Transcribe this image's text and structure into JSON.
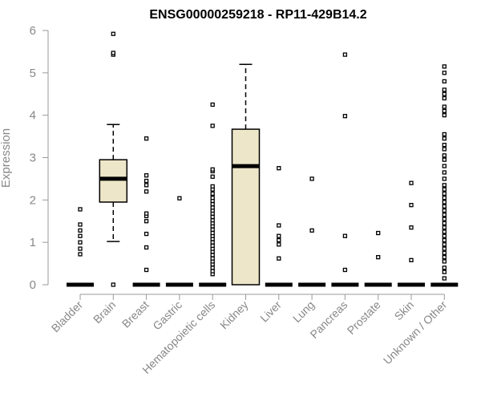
{
  "chart_data": {
    "type": "box",
    "title": "ENSG00000259218 - RP11-429B14.2",
    "ylabel": "Expression",
    "ylim": [
      0,
      6
    ],
    "yticks": [
      0,
      1,
      2,
      3,
      4,
      5,
      6
    ],
    "box_fill": "#ede6c8",
    "categories": [
      "Bladder",
      "Brain",
      "Breast",
      "Gastric",
      "Hematopoietic cells",
      "Kidney",
      "Liver",
      "Lung",
      "Pancreas",
      "Prostate",
      "Skin",
      "Unknown / Other"
    ],
    "boxes": [
      {
        "median": 0,
        "q1": 0,
        "q3": 0,
        "whisker_low": 0,
        "whisker_high": 0,
        "outliers": [
          0.72,
          0.85,
          1.0,
          1.15,
          1.28,
          1.42,
          1.78
        ]
      },
      {
        "median": 2.5,
        "q1": 1.95,
        "q3": 2.95,
        "whisker_low": 1.02,
        "whisker_high": 3.78,
        "outliers": [
          0,
          5.43,
          5.47,
          5.92
        ]
      },
      {
        "median": 0,
        "q1": 0,
        "q3": 0,
        "whisker_low": 0,
        "whisker_high": 0,
        "outliers": [
          0.35,
          0.88,
          1.2,
          1.5,
          1.62,
          1.68,
          2.2,
          2.35,
          2.45,
          2.58,
          3.45
        ]
      },
      {
        "median": 0,
        "q1": 0,
        "q3": 0,
        "whisker_low": 0,
        "whisker_high": 0,
        "outliers": [
          2.04
        ]
      },
      {
        "median": 0,
        "q1": 0,
        "q3": 0,
        "whisker_low": 0,
        "whisker_high": 0,
        "outliers": [
          0.25,
          0.32,
          0.4,
          0.48,
          0.55,
          0.62,
          0.7,
          0.78,
          0.85,
          0.92,
          1.0,
          1.08,
          1.15,
          1.22,
          1.3,
          1.38,
          1.45,
          1.52,
          1.6,
          1.68,
          1.75,
          1.82,
          1.9,
          1.98,
          2.05,
          2.15,
          2.25,
          2.32,
          2.55,
          2.68,
          2.72,
          3.75,
          4.25
        ]
      },
      {
        "median": 2.8,
        "q1": 0,
        "q3": 3.67,
        "whisker_low": 0,
        "whisker_high": 5.2,
        "outliers": []
      },
      {
        "median": 0,
        "q1": 0,
        "q3": 0,
        "whisker_low": 0,
        "whisker_high": 0,
        "outliers": [
          0.62,
          0.95,
          1.05,
          1.15,
          1.4,
          2.75
        ]
      },
      {
        "median": 0,
        "q1": 0,
        "q3": 0,
        "whisker_low": 0,
        "whisker_high": 0,
        "outliers": [
          1.28,
          2.5
        ]
      },
      {
        "median": 0,
        "q1": 0,
        "q3": 0,
        "whisker_low": 0,
        "whisker_high": 0,
        "outliers": [
          0.35,
          1.15,
          3.98,
          5.43
        ]
      },
      {
        "median": 0,
        "q1": 0,
        "q3": 0,
        "whisker_low": 0,
        "whisker_high": 0,
        "outliers": [
          0.65,
          1.22
        ]
      },
      {
        "median": 0,
        "q1": 0,
        "q3": 0,
        "whisker_low": 0,
        "whisker_high": 0,
        "outliers": [
          0.58,
          1.35,
          1.88,
          2.4
        ]
      },
      {
        "median": 0,
        "q1": 0,
        "q3": 0,
        "whisker_low": 0,
        "whisker_high": 0,
        "outliers": [
          0.15,
          0.3,
          0.4,
          0.55,
          0.65,
          0.75,
          0.85,
          0.95,
          1.05,
          1.15,
          1.25,
          1.35,
          1.45,
          1.55,
          1.65,
          1.75,
          1.85,
          1.95,
          2.05,
          2.15,
          2.25,
          2.35,
          2.5,
          2.65,
          2.8,
          2.95,
          3.05,
          3.2,
          3.3,
          3.45,
          3.55,
          4.0,
          4.1,
          4.2,
          4.4,
          4.5,
          4.6,
          4.8,
          5.0,
          5.15
        ]
      }
    ]
  }
}
